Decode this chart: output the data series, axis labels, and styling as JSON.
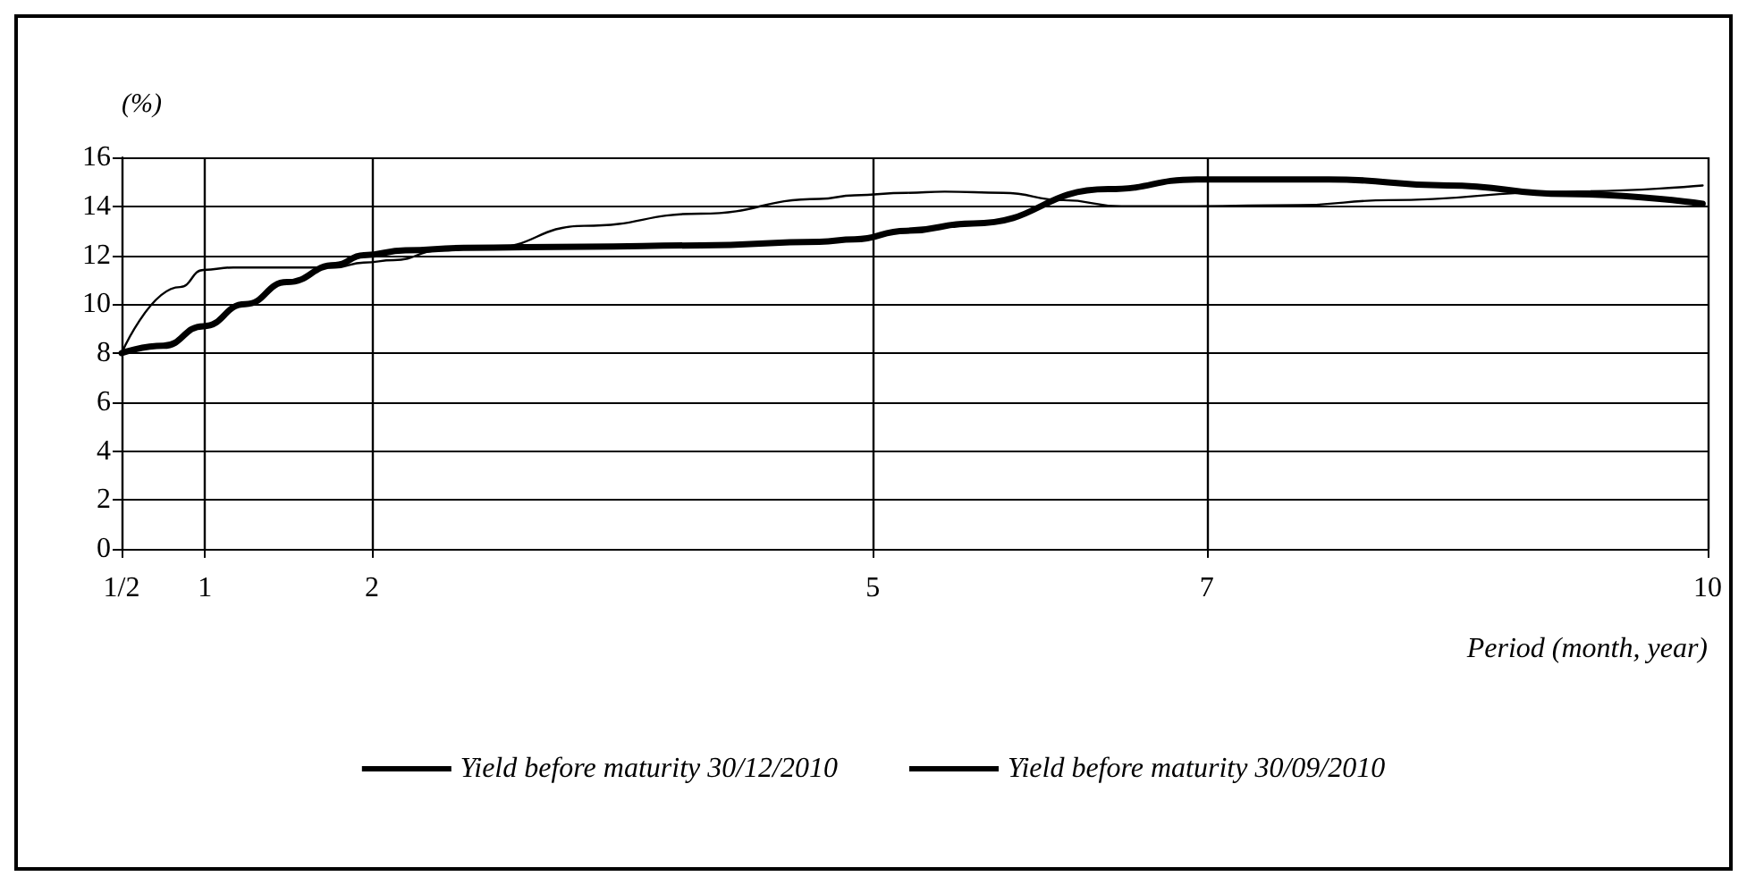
{
  "chart_data": {
    "type": "line",
    "ylabel": "(%)",
    "xlabel": "Period (month, year)",
    "xlim": [
      0.5,
      10
    ],
    "xticks": [
      {
        "value": 0.5,
        "label": "1/2"
      },
      1,
      2,
      5,
      7,
      10
    ],
    "ylim": [
      0,
      16
    ],
    "yticks": [
      0,
      2,
      4,
      6,
      8,
      10,
      12,
      14,
      16
    ],
    "grid": true,
    "legend": "bottom",
    "marker": "none",
    "line_style": "solid",
    "series": [
      {
        "name": "Yield before maturity 30/12/2010",
        "color": "#000000",
        "x": [
          0.5,
          0.75,
          0.99,
          1.24,
          1.49,
          1.78,
          1.95,
          2.2,
          2.55,
          3.27,
          3.97,
          4.68,
          4.89,
          5.2,
          5.6,
          6.41,
          6.94,
          7.73,
          8.44,
          9.15,
          9.97
        ],
        "values": [
          8,
          8.3,
          9.1,
          10,
          10.9,
          11.6,
          12,
          12.2,
          12.3,
          12.35,
          12.4,
          12.55,
          12.65,
          13,
          13.3,
          14.7,
          15.1,
          15.1,
          14.85,
          14.5,
          14.1
        ]
      },
      {
        "name": "Yield before maturity 30/09/2010",
        "color": "#000000",
        "x": [
          0.5,
          0.85,
          0.99,
          1.17,
          1.78,
          1.95,
          2.13,
          2.41,
          2.7,
          3.27,
          3.97,
          4.68,
          4.89,
          5.2,
          5.43,
          5.78,
          6.14,
          6.49,
          6.94,
          7.55,
          8.09,
          9.15,
          9.97
        ],
        "values": [
          8,
          10.7,
          11.4,
          11.5,
          11.5,
          11.7,
          11.8,
          12.2,
          12.3,
          13.2,
          13.7,
          14.3,
          14.45,
          14.55,
          14.6,
          14.55,
          14.25,
          14,
          14,
          14.05,
          14.25,
          14.6,
          14.85
        ]
      }
    ]
  }
}
